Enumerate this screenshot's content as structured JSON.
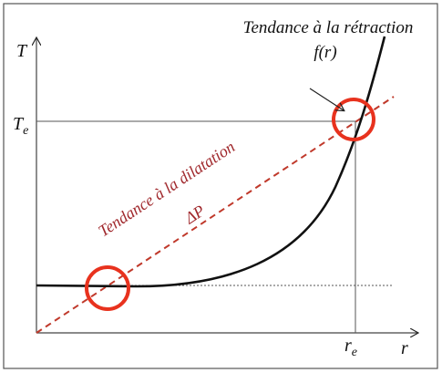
{
  "axes": {
    "y": "T",
    "x": "r"
  },
  "marks": {
    "te": {
      "base": "T",
      "sub": "e"
    },
    "re": {
      "base": "r",
      "sub": "e"
    }
  },
  "curves": [
    {
      "label": "Tendance à la rétraction",
      "formula": "f(r)"
    },
    {
      "label": "Tendance à la dilatation",
      "formula": "ΔP"
    }
  ]
}
